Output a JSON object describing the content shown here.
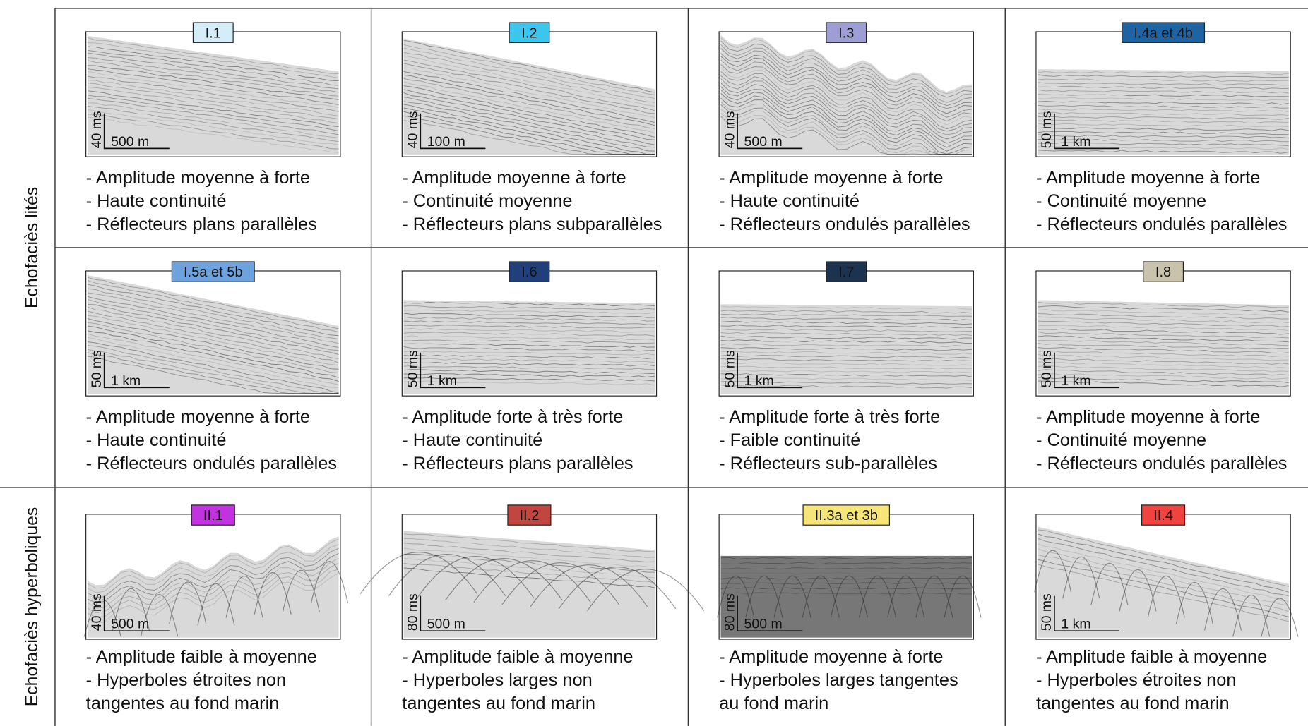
{
  "row_groups": [
    {
      "label": "Echofaciès lités"
    },
    {
      "label": "Echofaciès hyperboliques"
    }
  ],
  "cells": [
    {
      "label": "I.1",
      "color": "#d4edf9",
      "scale_vertical": "40 ms",
      "scale_horizontal": "500 m",
      "lines": [
        "- Amplitude moyenne à forte",
        "- Haute continuité",
        "- Réflecteurs plans parallèles"
      ]
    },
    {
      "label": "I.2",
      "color": "#3cc6ee",
      "scale_vertical": "40 ms",
      "scale_horizontal": "100 m",
      "lines": [
        "- Amplitude moyenne à forte",
        "- Continuité moyenne",
        "- Réflecteurs plans subparallèles"
      ]
    },
    {
      "label": "I.3",
      "color": "#9d9ed3",
      "scale_vertical": "40 ms",
      "scale_horizontal": "500 m",
      "lines": [
        "- Amplitude moyenne à forte",
        "- Haute continuité",
        "- Réflecteurs ondulés parallèles"
      ]
    },
    {
      "label": "I.4a et 4b",
      "color": "#1e64a3",
      "scale_vertical": "50 ms",
      "scale_horizontal": "1 km",
      "lines": [
        "- Amplitude moyenne à forte",
        "- Continuité moyenne",
        "- Réflecteurs ondulés parallèles"
      ]
    },
    {
      "label": "I.5a et 5b",
      "color": "#6ea2dc",
      "scale_vertical": "50 ms",
      "scale_horizontal": "1 km",
      "lines": [
        "- Amplitude moyenne à forte",
        "- Haute continuité",
        "- Réflecteurs ondulés parallèles"
      ]
    },
    {
      "label": "I.6",
      "color": "#203f7b",
      "scale_vertical": "50 ms",
      "scale_horizontal": "1 km",
      "lines": [
        "- Amplitude forte à très forte",
        "- Haute continuité",
        "- Réflecteurs plans parallèles"
      ]
    },
    {
      "label": "I.7",
      "color": "#1c3350",
      "scale_vertical": "50 ms",
      "scale_horizontal": "1 km",
      "lines": [
        "- Amplitude forte à très forte",
        "- Faible continuité",
        "- Réflecteurs sub-parallèles"
      ]
    },
    {
      "label": "I.8",
      "color": "#c9c3ab",
      "scale_vertical": "50 ms",
      "scale_horizontal": "1 km",
      "lines": [
        "- Amplitude moyenne à forte",
        "- Continuité moyenne",
        "- Réflecteurs ondulés parallèles"
      ]
    },
    {
      "label": "II.1",
      "color": "#c232e0",
      "scale_vertical": "40 ms",
      "scale_horizontal": "500 m",
      "lines": [
        "- Amplitude faible  à moyenne",
        "- Hyperboles étroites non",
        "tangentes au fond marin"
      ]
    },
    {
      "label": "II.2",
      "color": "#c1463f",
      "scale_vertical": "80 ms",
      "scale_horizontal": "500 m",
      "lines": [
        "- Amplitude faible à moyenne",
        "- Hyperboles larges non",
        "tangentes au fond marin"
      ]
    },
    {
      "label": "II.3a et 3b",
      "color": "#f6e67a",
      "scale_vertical": "80 ms",
      "scale_horizontal": "500 m",
      "lines": [
        "- Amplitude moyenne à forte",
        "- Hyperboles larges tangentes",
        "au fond marin"
      ]
    },
    {
      "label": "II.4",
      "color": "#f0423f",
      "scale_vertical": "50 ms",
      "scale_horizontal": "1 km",
      "lines": [
        "- Amplitude faible à moyenne",
        "- Hyperboles étroites non",
        "tangentes au fond marin"
      ]
    }
  ]
}
